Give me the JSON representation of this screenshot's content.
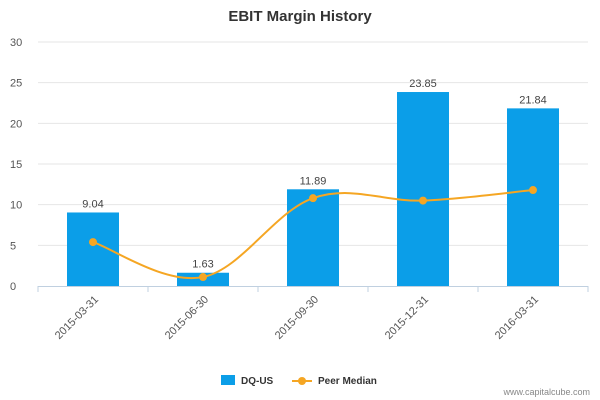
{
  "chart_data": {
    "type": "bar",
    "title": "EBIT Margin History",
    "categories": [
      "2015-03-31",
      "2015-06-30",
      "2015-09-30",
      "2015-12-31",
      "2016-03-31"
    ],
    "series": [
      {
        "name": "DQ-US",
        "type": "bar",
        "color": "#0b9ee8",
        "values": [
          9.04,
          1.63,
          11.89,
          23.85,
          21.84
        ],
        "labels": [
          "9.04",
          "1.63",
          "11.89",
          "23.85",
          "21.84"
        ]
      },
      {
        "name": "Peer Median",
        "type": "line",
        "color": "#f5a623",
        "values": [
          5.4,
          1.1,
          10.8,
          10.5,
          11.8
        ]
      }
    ],
    "yticks": [
      "0",
      "5",
      "10",
      "15",
      "20",
      "25",
      "30"
    ],
    "ylim": [
      0,
      30
    ],
    "xlabel": "",
    "ylabel": "",
    "legend": "bottom-center"
  },
  "credit": "www.capitalcube.com"
}
